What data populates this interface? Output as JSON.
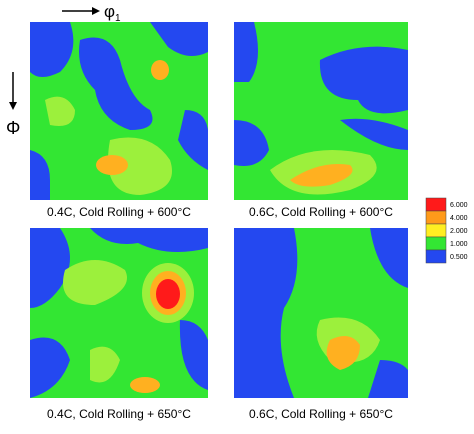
{
  "axes": {
    "horizontal": {
      "symbol": "φ",
      "subscript": "1"
    },
    "vertical": {
      "symbol": "Φ"
    }
  },
  "panels": [
    {
      "caption": "0.4C, Cold Rolling + 600°C"
    },
    {
      "caption": "0.6C, Cold Rolling + 600°C"
    },
    {
      "caption": "0.4C, Cold Rolling + 650°C"
    },
    {
      "caption": "0.6C, Cold Rolling + 650°C"
    }
  ],
  "legend": {
    "levels": [
      {
        "label": "6.000",
        "color": "#ff1a1a"
      },
      {
        "label": "4.000",
        "color": "#ff9a1a"
      },
      {
        "label": "2.000",
        "color": "#ffee22"
      },
      {
        "label": "1.000",
        "color": "#33e633"
      },
      {
        "label": "0.500",
        "color": "#2448f0"
      }
    ]
  }
}
